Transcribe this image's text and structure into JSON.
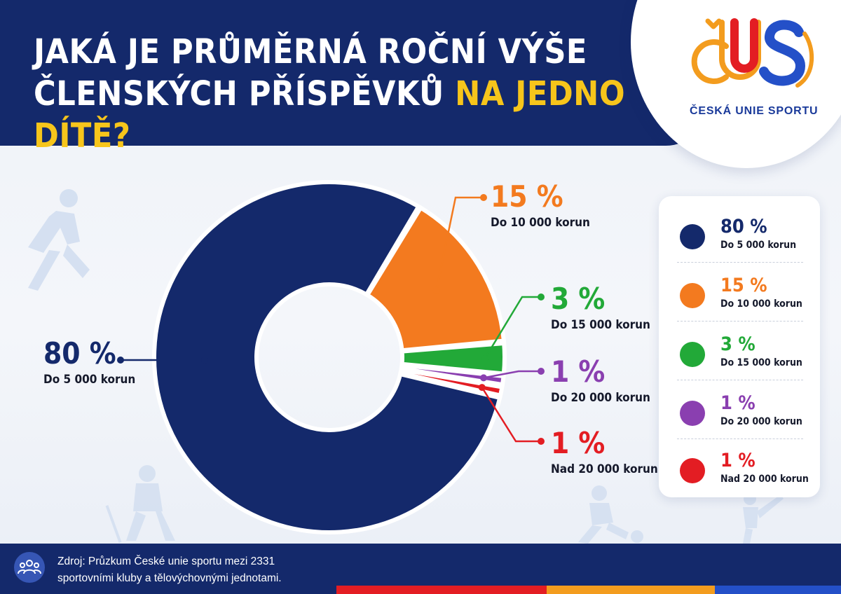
{
  "header": {
    "title_line1": "JAKÁ JE PRŮMĚRNÁ ROČNÍ VÝŠE",
    "title_line2_prefix": "ČLENSKÝCH PŘÍSPĚVKŮ",
    "title_line2_accent": "NA JEDNO DÍTĚ?"
  },
  "logo": {
    "text": "ČESKÁ UNIE SPORTU",
    "mark_letters": "ČUS"
  },
  "colors": {
    "navy": "#14296b",
    "accent_yellow": "#f7c51b",
    "orange": "#f37a1f",
    "green": "#22a938",
    "purple": "#8a3fb0",
    "red": "#e31d23"
  },
  "chart_data": {
    "type": "pie",
    "subtype": "donut",
    "series": [
      {
        "value": 80,
        "label": "80 %",
        "category": "Do 5 000 korun",
        "color": "#14296b"
      },
      {
        "value": 15,
        "label": "15 %",
        "category": "Do 10 000 korun",
        "color": "#f37a1f"
      },
      {
        "value": 3,
        "label": "3 %",
        "category": "Do 15 000 korun",
        "color": "#22a938"
      },
      {
        "value": 1,
        "label": "1 %",
        "category": "Do 20 000 korun",
        "color": "#8a3fb0"
      },
      {
        "value": 1,
        "label": "1 %",
        "category": "Nad 20 000 korun",
        "color": "#e31d23"
      }
    ],
    "legend_position": "right"
  },
  "footer": {
    "source_line1": "Zdroj: Průzkum České unie sportu mezi 2331",
    "source_line2": "sportovními kluby a tělovýchovnými jednotami.",
    "icon": "people-group-icon"
  }
}
